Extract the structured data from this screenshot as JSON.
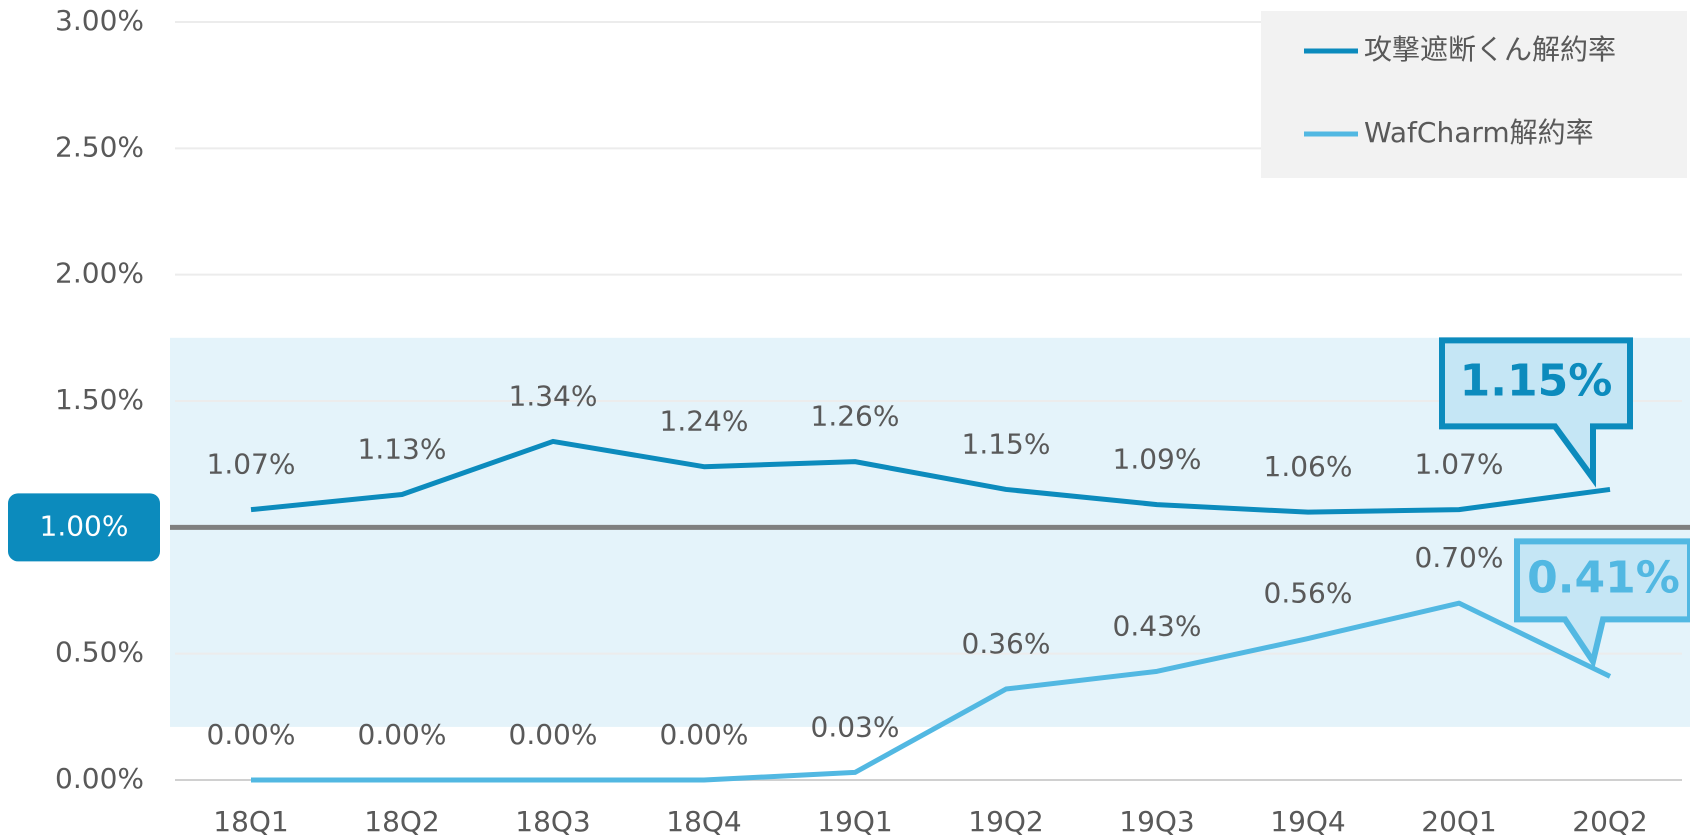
{
  "chart_data": {
    "type": "line",
    "categories": [
      "18Q1",
      "18Q2",
      "18Q3",
      "18Q4",
      "19Q1",
      "19Q2",
      "19Q3",
      "19Q4",
      "20Q1",
      "20Q2"
    ],
    "series": [
      {
        "name": "攻撃遮断くん解約率",
        "color": "#0c8bbd",
        "values": [
          1.07,
          1.13,
          1.34,
          1.24,
          1.26,
          1.15,
          1.09,
          1.06,
          1.07,
          1.15
        ],
        "value_labels": [
          "1.07%",
          "1.13%",
          "1.34%",
          "1.24%",
          "1.26%",
          "1.15%",
          "1.09%",
          "1.06%",
          "1.07%",
          "1.15%"
        ]
      },
      {
        "name": "WafCharm解約率",
        "color": "#52b8e2",
        "values": [
          0,
          0,
          0,
          0,
          0.03,
          0.36,
          0.43,
          0.56,
          0.7,
          0.41
        ],
        "value_labels": [
          "0.00%",
          "0.00%",
          "0.00%",
          "0.00%",
          "0.03%",
          "0.36%",
          "0.43%",
          "0.56%",
          "0.70%",
          "0.41%"
        ]
      }
    ],
    "ylim": [
      0,
      3
    ],
    "yticks": [
      {
        "value": 0,
        "label": "0.00%"
      },
      {
        "value": 0.5,
        "label": "0.50%"
      },
      {
        "value": 1,
        "label": "1.00%"
      },
      {
        "value": 1.5,
        "label": "1.50%"
      },
      {
        "value": 2,
        "label": "2.00%"
      },
      {
        "value": 2.5,
        "label": "2.50%"
      },
      {
        "value": 3,
        "label": "3.00%"
      }
    ],
    "grid": true,
    "highlight_band": [
      0.21,
      1.75
    ],
    "reference_line": {
      "value": 1,
      "label": "1.00%",
      "color": "#7f7f7f"
    },
    "legend": "upper right"
  }
}
